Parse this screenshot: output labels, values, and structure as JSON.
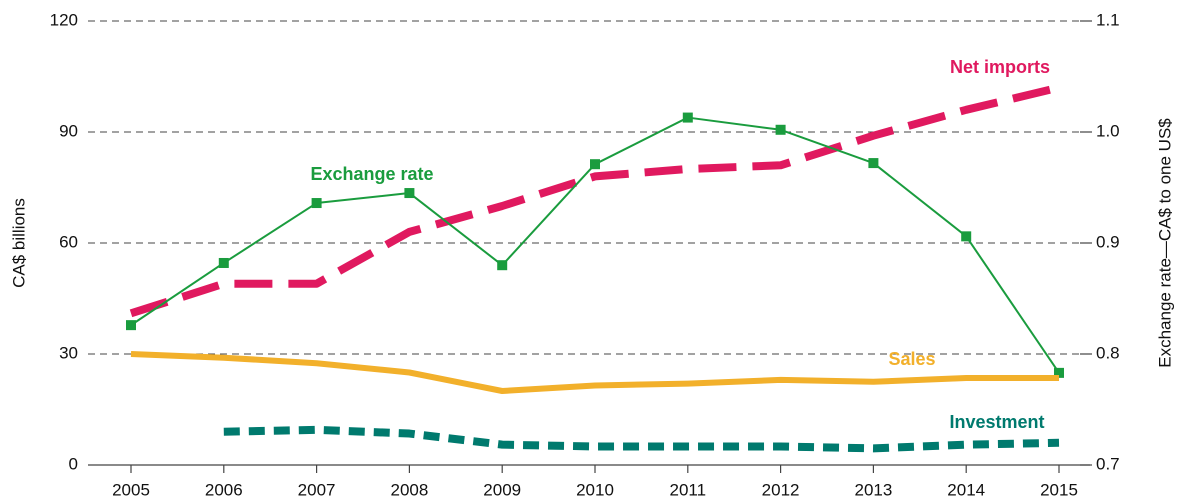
{
  "chart_data": {
    "type": "line",
    "y_label": "CA$ billions",
    "y2_label": "Exchange rate—CA$ to one US$",
    "categories": [
      "2005",
      "2006",
      "2007",
      "2008",
      "2009",
      "2010",
      "2011",
      "2012",
      "2013",
      "2014",
      "2015"
    ],
    "ylim": [
      0,
      120
    ],
    "yticks": [
      0,
      30,
      60,
      90,
      120
    ],
    "y2lim": [
      0.7,
      1.1
    ],
    "y2ticks": [
      0.7,
      0.8,
      0.9,
      {
        "value": 1,
        "label": "1.0"
      },
      1.1
    ],
    "grid": true,
    "series": [
      {
        "name": "Net imports",
        "color": "#e0195f",
        "line_style": "dashed",
        "values": [
          41,
          49,
          49,
          63,
          70,
          78,
          80,
          81,
          89,
          96,
          102
        ]
      },
      {
        "name": "Exchange rate",
        "color": "#1a9c3e",
        "line_style": "solid",
        "marker": "square",
        "axis": "y2",
        "values": [
          0.826,
          0.882,
          0.936,
          0.945,
          0.88,
          0.971,
          1.013,
          1.002,
          0.972,
          0.906,
          0.783
        ]
      },
      {
        "name": "Sales",
        "color": "#f2b02b",
        "line_style": "solid",
        "values": [
          30,
          29,
          27.5,
          25,
          20,
          21.5,
          22,
          23,
          22.5,
          23.5,
          23.5
        ]
      },
      {
        "name": "Investment",
        "color": "#007a6e",
        "line_style": "dotted",
        "values": [
          null,
          9,
          9.5,
          8.5,
          5.5,
          5,
          5,
          5,
          4.5,
          5.5,
          6
        ]
      }
    ]
  }
}
